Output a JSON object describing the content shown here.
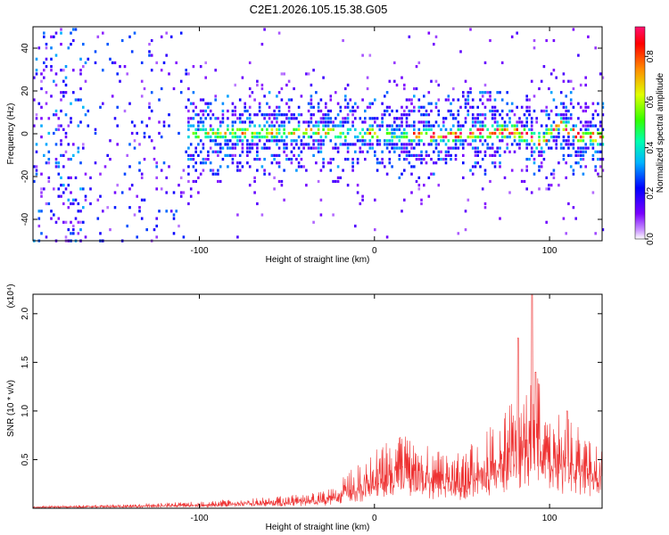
{
  "title": "C2E1.2026.105.15.38.G05",
  "chart_data": [
    {
      "type": "heatmap",
      "xlabel": "Height of straight line (km)",
      "ylabel": "Frequency (Hz)",
      "xlim": [
        -195,
        130
      ],
      "ylim": [
        -50,
        50
      ],
      "x_ticks": [
        -100,
        0,
        100
      ],
      "y_ticks": [
        -40,
        -20,
        0,
        20,
        40
      ],
      "colorbar": {
        "label": "Normalized spectral amplitude",
        "range": [
          0,
          0.93
        ],
        "ticks": [
          0,
          0.2,
          0.4,
          0.6,
          0.8
        ]
      },
      "ridge": [
        [
          -170,
          0
        ],
        [
          -100,
          0
        ],
        [
          -20,
          1
        ],
        [
          0,
          0
        ],
        [
          20,
          -1
        ],
        [
          40,
          -1
        ],
        [
          60,
          1
        ],
        [
          80,
          1
        ],
        [
          95,
          -4
        ],
        [
          105,
          5
        ],
        [
          115,
          -1
        ],
        [
          130,
          -2
        ]
      ]
    },
    {
      "type": "line",
      "xlabel": "Height of straight line (km)",
      "ylabel": "SNR (10 * v/v)",
      "y_multiplier": "(x10⁴)",
      "xlim": [
        -195,
        130
      ],
      "ylim": [
        0,
        2.2
      ],
      "x_ticks": [
        -100,
        0,
        100
      ],
      "y_ticks": [
        0.5,
        1.0,
        1.5,
        2.0
      ],
      "y_tick_labels": [
        "0.5",
        "1.0",
        "1.5",
        "2.0"
      ],
      "color": "#ee3333",
      "envelope": [
        [
          -195,
          0.02
        ],
        [
          -150,
          0.04
        ],
        [
          -100,
          0.07
        ],
        [
          -60,
          0.12
        ],
        [
          -40,
          0.15
        ],
        [
          -25,
          0.2
        ],
        [
          -20,
          0.3
        ],
        [
          -10,
          0.45
        ],
        [
          0,
          0.6
        ],
        [
          10,
          0.75
        ],
        [
          20,
          0.8
        ],
        [
          30,
          0.65
        ],
        [
          40,
          0.55
        ],
        [
          50,
          0.6
        ],
        [
          60,
          0.75
        ],
        [
          70,
          0.95
        ],
        [
          80,
          1.15
        ],
        [
          88,
          1.35
        ],
        [
          92,
          1.45
        ],
        [
          100,
          1.05
        ],
        [
          110,
          0.95
        ],
        [
          120,
          0.8
        ],
        [
          130,
          0.7
        ]
      ],
      "peaks": [
        [
          82,
          1.75
        ],
        [
          90,
          2.2
        ],
        [
          92,
          1.4
        ],
        [
          110,
          1.0
        ]
      ]
    }
  ]
}
